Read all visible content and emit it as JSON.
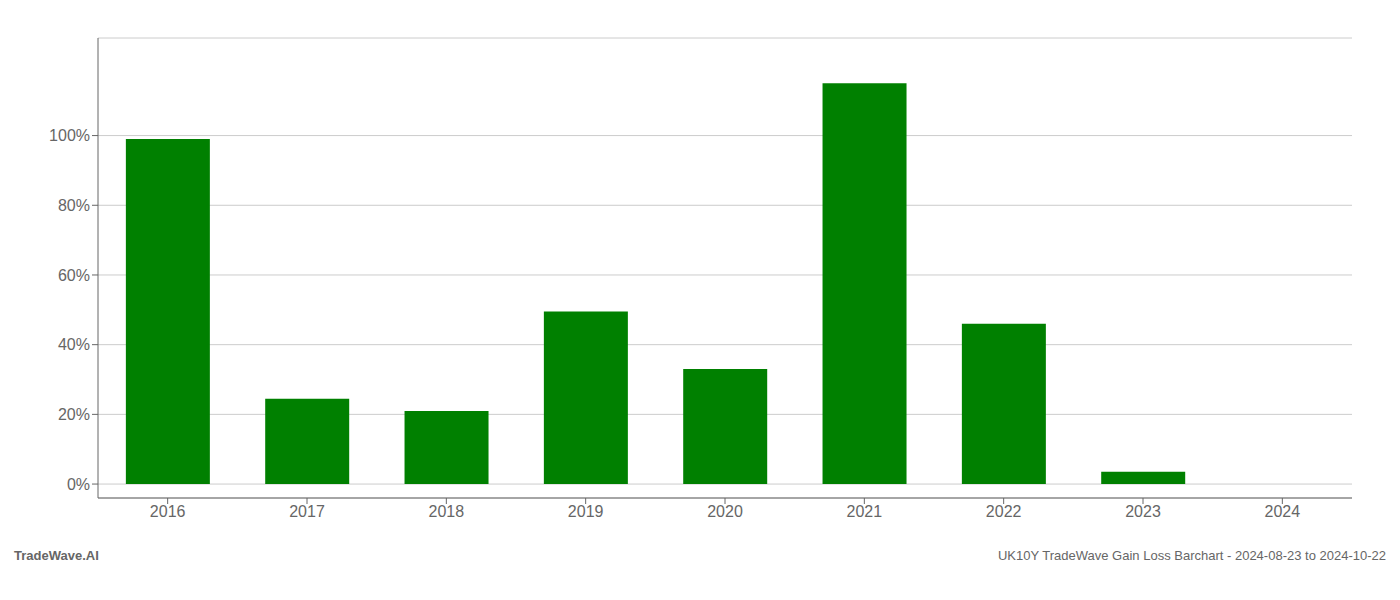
{
  "chart_data": {
    "type": "bar",
    "categories": [
      "2016",
      "2017",
      "2018",
      "2019",
      "2020",
      "2021",
      "2022",
      "2023",
      "2024"
    ],
    "values": [
      99.0,
      24.5,
      21.0,
      49.5,
      33.0,
      115.0,
      46.0,
      3.5,
      0.0
    ],
    "color": "#008000",
    "ylim": [
      -4,
      128
    ],
    "yticks": [
      {
        "value": 0,
        "label": "0%"
      },
      {
        "value": 20,
        "label": "20%"
      },
      {
        "value": 40,
        "label": "40%"
      },
      {
        "value": 60,
        "label": "60%"
      },
      {
        "value": 80,
        "label": "80%"
      },
      {
        "value": 100,
        "label": "100%"
      }
    ],
    "grid": true,
    "annotations": [
      "TradeWave.AI",
      "UK10Y TradeWave Gain Loss Barchart - 2024-08-23 to 2024-10-22"
    ]
  }
}
